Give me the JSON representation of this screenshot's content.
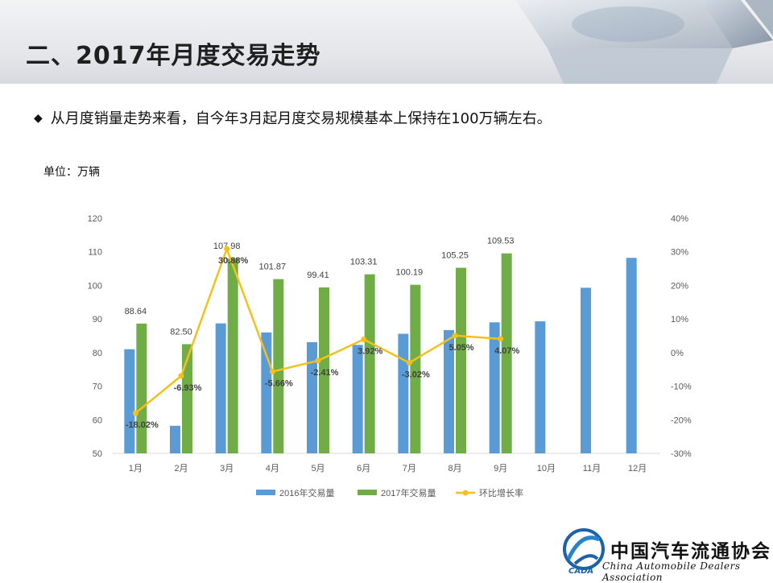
{
  "page": {
    "title": "二、2017年月度交易走势",
    "bullet_symbol": "◆",
    "bullet_text": "从月度销量走势来看，自今年3月起月度交易规模基本上保持在100万辆左右。",
    "unit_label": "单位：万辆"
  },
  "footer": {
    "org_name_cn": "中国汽车流通协会",
    "org_name_en": "China Automobile Dealers Association",
    "logo_text": "CADA"
  },
  "colors": {
    "bar2016": "#5b9bd5",
    "bar2017": "#70ad47",
    "line": "#f5c01b"
  },
  "chart_data": {
    "type": "bar",
    "categories": [
      "1月",
      "2月",
      "3月",
      "4月",
      "5月",
      "6月",
      "7月",
      "8月",
      "9月",
      "10月",
      "11月",
      "12月"
    ],
    "series": [
      {
        "name": "2016年交易量",
        "type": "bar",
        "axis": "left",
        "values": [
          81.0,
          58.2,
          88.7,
          86.0,
          83.1,
          82.3,
          85.6,
          86.7,
          89.0,
          89.3,
          99.3,
          108.2
        ]
      },
      {
        "name": "2017年交易量",
        "type": "bar",
        "axis": "left",
        "values": [
          88.64,
          82.5,
          107.98,
          101.87,
          99.41,
          103.31,
          100.19,
          105.25,
          109.53,
          null,
          null,
          null
        ],
        "labels": [
          "88.64",
          "82.50",
          "107.98",
          "101.87",
          "99.41",
          "103.31",
          "100.19",
          "105.25",
          "109.53",
          "",
          "",
          ""
        ]
      },
      {
        "name": "环比增长率",
        "type": "line",
        "axis": "right",
        "values": [
          -18.02,
          -6.93,
          30.88,
          -5.66,
          -2.41,
          3.92,
          -3.02,
          5.05,
          4.07,
          null,
          null,
          null
        ],
        "labels": [
          "-18.02%",
          "-6.93%",
          "30.88%",
          "-5.66%",
          "-2.41%",
          "3.92%",
          "-3.02%",
          "5.05%",
          "4.07%",
          "",
          "",
          ""
        ]
      }
    ],
    "y_left": {
      "min": 50,
      "max": 120,
      "ticks": [
        "50",
        "60",
        "70",
        "80",
        "90",
        "100",
        "110",
        "120"
      ]
    },
    "y_right": {
      "min": -30,
      "max": 40,
      "ticks": [
        "-30%",
        "-20%",
        "-10%",
        "0%",
        "10%",
        "20%",
        "30%",
        "40%"
      ]
    },
    "legend": [
      "2016年交易量",
      "2017年交易量",
      "环比增长率"
    ],
    "legend_position": "bottom",
    "grid": false
  }
}
